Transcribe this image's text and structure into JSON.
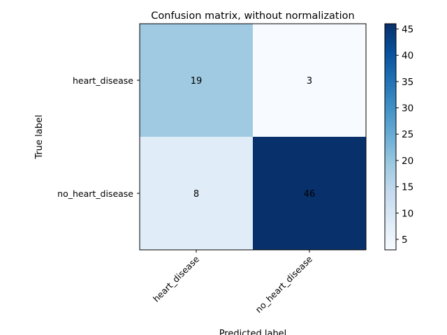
{
  "chart_data": {
    "type": "heatmap",
    "title": "Confusion matrix, without normalization",
    "xlabel": "Predicted label",
    "ylabel": "True label",
    "x_categories": [
      "heart_disease",
      "no_heart_disease"
    ],
    "y_categories": [
      "heart_disease",
      "no_heart_disease"
    ],
    "values": [
      [
        19,
        3
      ],
      [
        8,
        46
      ]
    ],
    "colormap": "Blues",
    "colorbar": {
      "min": 3,
      "max": 46,
      "ticks": [
        5,
        10,
        15,
        20,
        25,
        30,
        35,
        40,
        45
      ]
    },
    "cell_text_colors": {
      "light": "#000000",
      "dark": "#ffffff"
    },
    "grid": false,
    "legend": "none"
  }
}
